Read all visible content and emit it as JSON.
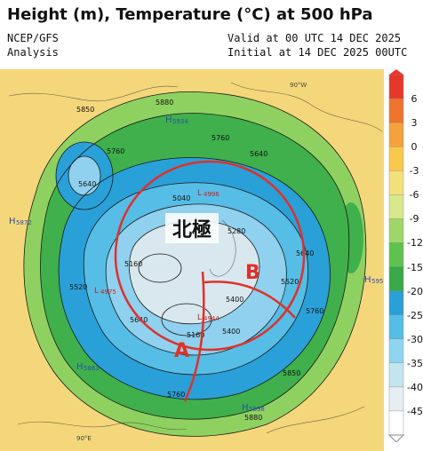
{
  "header": {
    "title": "Height (m), Temperature (°C) at 500 hPa",
    "source": "NCEP/GFS",
    "type": "Analysis",
    "valid": "Valid at 00 UTC 14 DEC 2025",
    "initial": "Initial at 14 DEC 2025 00UTC"
  },
  "map": {
    "pole_label": "北極",
    "marker_a": "A",
    "marker_b": "B",
    "contours": [
      "5880",
      "5850",
      "5760",
      "5640",
      "5520",
      "5400",
      "5280",
      "5160",
      "5040"
    ],
    "contour_texts": {
      "c1": "5850",
      "c2": "5880",
      "c3": "5760",
      "c4": "5760",
      "c5": "5640",
      "c6": "5640",
      "c7": "5520",
      "c8": "5400",
      "c9": "5280",
      "c10": "5160",
      "c11": "5040",
      "c12": "5520",
      "c13": "5640",
      "c14": "5760",
      "c15": "5880",
      "c16": "5760",
      "c17": "5850",
      "c18": "5640",
      "c19": "5160",
      "c20": "5400"
    },
    "highs": [
      {
        "label": "H",
        "value": "5934"
      },
      {
        "label": "H",
        "value": "5872"
      },
      {
        "label": "H",
        "value": "5863"
      },
      {
        "label": "H",
        "value": "5898"
      },
      {
        "label": "H",
        "value": "5957"
      }
    ],
    "lows": [
      {
        "label": "L",
        "value": "4975"
      },
      {
        "label": "L",
        "value": "4944"
      },
      {
        "label": "L",
        "value": "4996"
      }
    ],
    "lon_labels": {
      "w90": "90°W",
      "e90": "90°E"
    }
  },
  "colorbar": {
    "ticks": [
      "6",
      "3",
      "0",
      "-3",
      "-6",
      "-9",
      "-12",
      "-15",
      "-20",
      "-25",
      "-30",
      "-35",
      "-40",
      "-45"
    ],
    "colors": [
      "#e8372a",
      "#f0742c",
      "#f6a23a",
      "#f8c94a",
      "#f3e07a",
      "#d8e88a",
      "#9fd66a",
      "#5fc24e",
      "#39a94a",
      "#2aa0d8",
      "#56bde6",
      "#8ed6ef",
      "#c4e4ee",
      "#e6eef2",
      "#ffffff"
    ]
  },
  "colors": {
    "warm": "#f4d77a",
    "green_light": "#8fd161",
    "green": "#3fb04b",
    "blue": "#2aa0d8",
    "light_blue": "#8fd1ee",
    "pale": "#d8e8ee",
    "annotation": "#e0302a"
  }
}
